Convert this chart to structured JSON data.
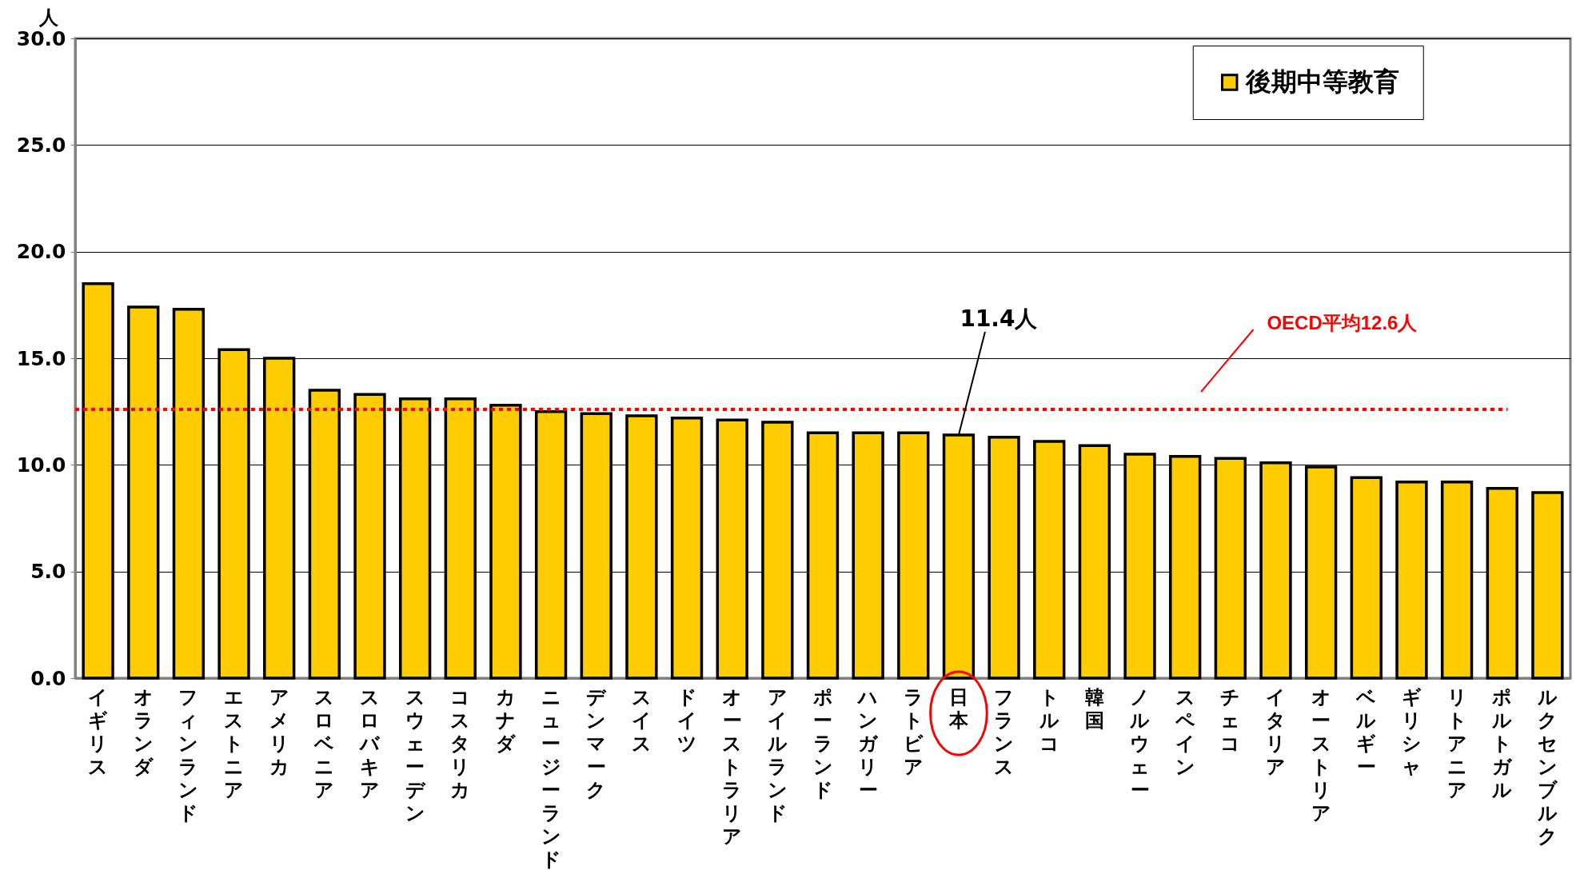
{
  "chart_data": {
    "type": "bar",
    "categories": [
      "イギリス",
      "オランダ",
      "フィンランド",
      "エストニア",
      "アメリカ",
      "スロベニア",
      "スロバキア",
      "スウェーデン",
      "コスタリカ",
      "カナダ",
      "ニュージーランド",
      "デンマーク",
      "スイス",
      "ドイツ",
      "オーストラリア",
      "アイルランド",
      "ポーランド",
      "ハンガリー",
      "ラトビア",
      "日本",
      "フランス",
      "トルコ",
      "韓国",
      "ノルウェー",
      "スペイン",
      "チェコ",
      "イタリア",
      "オーストリア",
      "ベルギー",
      "ギリシャ",
      "リトアニア",
      "ポルトガル",
      "ルクセンブルク"
    ],
    "series": [
      {
        "name": "後期中等教育",
        "color": "#ffcc00",
        "values": [
          18.5,
          17.4,
          17.3,
          15.4,
          15.0,
          13.5,
          13.3,
          13.1,
          13.1,
          12.8,
          12.5,
          12.4,
          12.3,
          12.2,
          12.1,
          12.0,
          11.5,
          11.5,
          11.5,
          11.4,
          11.3,
          11.1,
          10.9,
          10.5,
          10.4,
          10.3,
          10.1,
          9.9,
          9.4,
          9.2,
          9.2,
          8.9,
          8.7
        ]
      }
    ],
    "ylabel": "人",
    "ylim": [
      0,
      30
    ],
    "yticks": [
      {
        "value": 0,
        "label": "0.0"
      },
      {
        "value": 5,
        "label": "5.0"
      },
      {
        "value": 10,
        "label": "10.0"
      },
      {
        "value": 15,
        "label": "15.0"
      },
      {
        "value": 20,
        "label": "20.0"
      },
      {
        "value": 25,
        "label": "25.0"
      },
      {
        "value": 30,
        "label": "30.0"
      }
    ],
    "grid": "y",
    "legend": "top right",
    "ref_lines": [
      {
        "axis": "y",
        "value": 12.6,
        "label": "OECD平均12.6人",
        "color": "#ff0000",
        "line_style": "dotted"
      }
    ],
    "annotations": [
      {
        "text": "11.4人",
        "x": "日本",
        "y": 11.4
      }
    ]
  }
}
